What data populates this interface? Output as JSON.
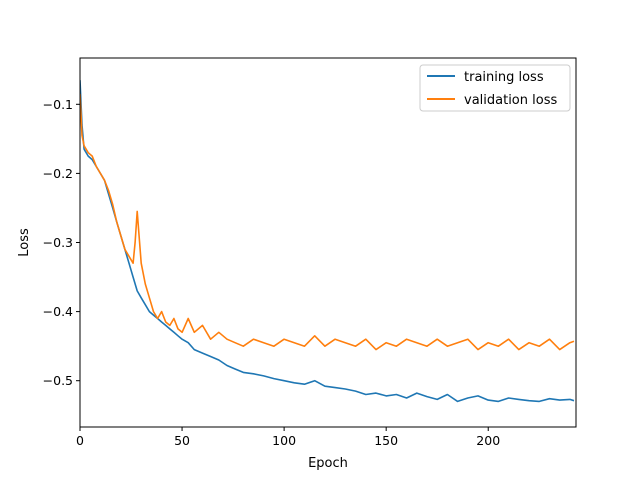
{
  "chart_data": {
    "type": "line",
    "title": "",
    "xlabel": "Epoch",
    "ylabel": "Loss",
    "xlim": [
      0,
      243
    ],
    "ylim": [
      -0.567,
      -0.033
    ],
    "x_ticks": [
      0,
      50,
      100,
      150,
      200
    ],
    "x_tick_labels": [
      "0",
      "50",
      "100",
      "150",
      "200"
    ],
    "y_ticks": [
      -0.1,
      -0.2,
      -0.3,
      -0.4,
      -0.5
    ],
    "y_tick_labels": [
      "−0.1",
      "−0.2",
      "−0.3",
      "−0.4",
      "−0.5"
    ],
    "grid": false,
    "legend_position": "top-right",
    "series": [
      {
        "name": "training loss",
        "color": "#1f77b4",
        "x": [
          0,
          1,
          2,
          4,
          6,
          8,
          10,
          12,
          14,
          16,
          18,
          20,
          22,
          24,
          26,
          28,
          30,
          32,
          34,
          36,
          38,
          40,
          42,
          44,
          46,
          48,
          50,
          53,
          56,
          60,
          64,
          68,
          72,
          76,
          80,
          85,
          90,
          95,
          100,
          105,
          110,
          115,
          120,
          125,
          130,
          135,
          140,
          145,
          150,
          155,
          160,
          165,
          170,
          175,
          180,
          185,
          190,
          195,
          200,
          205,
          210,
          215,
          220,
          225,
          230,
          235,
          240,
          242
        ],
        "y": [
          -0.065,
          -0.13,
          -0.165,
          -0.175,
          -0.18,
          -0.19,
          -0.2,
          -0.21,
          -0.23,
          -0.25,
          -0.27,
          -0.29,
          -0.31,
          -0.33,
          -0.35,
          -0.37,
          -0.38,
          -0.39,
          -0.4,
          -0.405,
          -0.41,
          -0.415,
          -0.42,
          -0.425,
          -0.43,
          -0.435,
          -0.44,
          -0.445,
          -0.455,
          -0.46,
          -0.465,
          -0.47,
          -0.478,
          -0.483,
          -0.488,
          -0.49,
          -0.493,
          -0.497,
          -0.5,
          -0.503,
          -0.505,
          -0.5,
          -0.508,
          -0.51,
          -0.512,
          -0.515,
          -0.52,
          -0.518,
          -0.522,
          -0.52,
          -0.525,
          -0.518,
          -0.523,
          -0.527,
          -0.52,
          -0.53,
          -0.525,
          -0.522,
          -0.528,
          -0.53,
          -0.525,
          -0.527,
          -0.529,
          -0.53,
          -0.526,
          -0.528,
          -0.527,
          -0.529
        ]
      },
      {
        "name": "validation loss",
        "color": "#ff7f0e",
        "x": [
          0,
          1,
          2,
          4,
          6,
          8,
          10,
          12,
          14,
          16,
          18,
          20,
          22,
          24,
          26,
          27,
          28,
          30,
          32,
          34,
          36,
          38,
          40,
          42,
          44,
          46,
          48,
          50,
          53,
          56,
          60,
          64,
          68,
          72,
          76,
          80,
          85,
          90,
          95,
          100,
          105,
          110,
          115,
          120,
          125,
          130,
          135,
          140,
          145,
          150,
          155,
          160,
          165,
          170,
          175,
          180,
          185,
          190,
          195,
          200,
          205,
          210,
          215,
          220,
          225,
          230,
          235,
          240,
          242
        ],
        "y": [
          -0.085,
          -0.145,
          -0.16,
          -0.17,
          -0.175,
          -0.19,
          -0.2,
          -0.21,
          -0.225,
          -0.245,
          -0.27,
          -0.29,
          -0.31,
          -0.32,
          -0.33,
          -0.3,
          -0.255,
          -0.33,
          -0.36,
          -0.38,
          -0.4,
          -0.41,
          -0.4,
          -0.415,
          -0.42,
          -0.41,
          -0.425,
          -0.43,
          -0.41,
          -0.43,
          -0.42,
          -0.44,
          -0.43,
          -0.44,
          -0.445,
          -0.45,
          -0.44,
          -0.445,
          -0.45,
          -0.44,
          -0.445,
          -0.45,
          -0.435,
          -0.45,
          -0.44,
          -0.445,
          -0.45,
          -0.44,
          -0.455,
          -0.445,
          -0.45,
          -0.44,
          -0.445,
          -0.45,
          -0.44,
          -0.45,
          -0.445,
          -0.44,
          -0.455,
          -0.445,
          -0.45,
          -0.44,
          -0.455,
          -0.445,
          -0.45,
          -0.44,
          -0.455,
          -0.445,
          -0.443
        ]
      }
    ]
  }
}
